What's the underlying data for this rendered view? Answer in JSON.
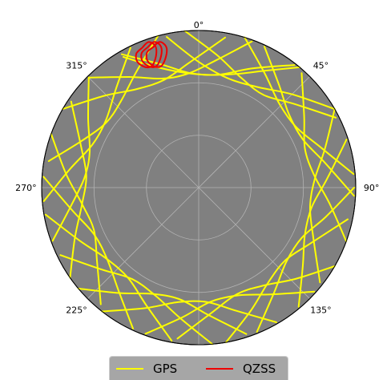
{
  "chart_data": {
    "type": "polar-skyplot",
    "title": "",
    "angular_ticks": [
      {
        "deg": 0,
        "label": "0°"
      },
      {
        "deg": 45,
        "label": "45°"
      },
      {
        "deg": 90,
        "label": "90°"
      },
      {
        "deg": 135,
        "label": "135°"
      },
      {
        "deg": 225,
        "label": "225°"
      },
      {
        "deg": 270,
        "label": "270°"
      },
      {
        "deg": 315,
        "label": "315°"
      }
    ],
    "angular_direction": "clockwise",
    "zero_location": "top",
    "radial_grid_fraction": [
      0.333,
      0.667
    ],
    "background_color": "#808080",
    "grid_color": "#b3b3b3",
    "legend_placement": "bottom-center",
    "series": [
      {
        "name": "GPS",
        "color": "#ffff00",
        "tracks": [
          {
            "az": [
              40,
              30,
              18,
              5,
              -8,
              -20,
              -30
            ],
            "r": [
              1.0,
              0.86,
              0.76,
              0.72,
              0.74,
              0.82,
              0.96
            ]
          },
          {
            "az": [
              60,
              45,
              30,
              15,
              0,
              -12
            ],
            "r": [
              1.0,
              0.84,
              0.74,
              0.72,
              0.8,
              0.98
            ]
          },
          {
            "az": [
              20,
              8,
              -5,
              -18,
              -32,
              -45
            ],
            "r": [
              0.99,
              0.82,
              0.73,
              0.73,
              0.83,
              0.99
            ]
          },
          {
            "az": [
              -15,
              -28,
              -42,
              -55,
              -68,
              -80
            ],
            "r": [
              1.0,
              0.84,
              0.74,
              0.72,
              0.8,
              0.97
            ]
          },
          {
            "az": [
              -45,
              -58,
              -72,
              -85,
              -98,
              -110
            ],
            "r": [
              0.99,
              0.83,
              0.73,
              0.73,
              0.82,
              0.99
            ]
          },
          {
            "az": [
              -70,
              -84,
              -98,
              -112,
              -126,
              -140
            ],
            "r": [
              1.0,
              0.85,
              0.75,
              0.72,
              0.8,
              0.97
            ]
          },
          {
            "az": [
              -100,
              -114,
              -128,
              -142,
              -156,
              -170
            ],
            "r": [
              0.99,
              0.83,
              0.74,
              0.73,
              0.82,
              0.99
            ]
          },
          {
            "az": [
              -130,
              -143,
              -156,
              -170,
              -184,
              -198
            ],
            "r": [
              1.0,
              0.84,
              0.74,
              0.72,
              0.81,
              0.98
            ]
          },
          {
            "az": [
              -160,
              -173,
              -186,
              -200,
              -214,
              -228
            ],
            "r": [
              0.99,
              0.83,
              0.73,
              0.73,
              0.82,
              0.99
            ]
          },
          {
            "az": [
              170,
              157,
              144,
              130,
              116,
              102
            ],
            "r": [
              1.0,
              0.85,
              0.75,
              0.72,
              0.8,
              0.97
            ]
          },
          {
            "az": [
              140,
              127,
              114,
              100,
              86,
              72
            ],
            "r": [
              0.99,
              0.83,
              0.74,
              0.73,
              0.82,
              0.99
            ]
          },
          {
            "az": [
              110,
              97,
              84,
              70,
              56,
              42
            ],
            "r": [
              1.0,
              0.84,
              0.74,
              0.72,
              0.81,
              0.98
            ]
          },
          {
            "az": [
              85,
              72,
              58,
              44,
              30,
              17
            ],
            "r": [
              0.99,
              0.82,
              0.73,
              0.74,
              0.84,
              1.0
            ]
          },
          {
            "az": [
              -30,
              -17,
              -4,
              10,
              24,
              38
            ],
            "r": [
              0.98,
              0.82,
              0.73,
              0.73,
              0.83,
              0.99
            ]
          },
          {
            "az": [
              -60,
              -46,
              -32,
              -18,
              -4,
              10
            ],
            "r": [
              1.0,
              0.84,
              0.74,
              0.72,
              0.8,
              0.97
            ]
          },
          {
            "az": [
              -95,
              -82,
              -68,
              -54,
              -40,
              -26
            ],
            "r": [
              0.99,
              0.83,
              0.73,
              0.73,
              0.82,
              0.99
            ]
          },
          {
            "az": [
              -125,
              -112,
              -98,
              -84,
              -70,
              -56
            ],
            "r": [
              1.0,
              0.85,
              0.75,
              0.72,
              0.8,
              0.98
            ]
          },
          {
            "az": [
              -155,
              -142,
              -128,
              -114,
              -100,
              -86
            ],
            "r": [
              0.99,
              0.83,
              0.74,
              0.73,
              0.82,
              0.99
            ]
          },
          {
            "az": [
              175,
              188,
              202,
              216,
              230,
              244
            ],
            "r": [
              1.0,
              0.84,
              0.74,
              0.72,
              0.81,
              0.98
            ]
          },
          {
            "az": [
              150,
              163,
              176,
              190,
              204,
              218
            ],
            "r": [
              0.99,
              0.82,
              0.73,
              0.74,
              0.84,
              1.0
            ]
          },
          {
            "az": [
              120,
              133,
              146,
              160,
              174,
              188
            ],
            "r": [
              1.0,
              0.85,
              0.75,
              0.72,
              0.8,
              0.97
            ]
          },
          {
            "az": [
              90,
              103,
              116,
              130,
              144,
              158
            ],
            "r": [
              0.99,
              0.83,
              0.73,
              0.73,
              0.82,
              0.99
            ]
          },
          {
            "az": [
              60,
              73,
              86,
              100,
              114,
              128
            ],
            "r": [
              1.0,
              0.84,
              0.74,
              0.72,
              0.8,
              0.98
            ]
          },
          {
            "az": [
              25,
              38,
              51,
              65,
              79,
              93
            ],
            "r": [
              0.99,
              0.83,
              0.74,
              0.73,
              0.82,
              0.99
            ]
          },
          {
            "az": [
              -5,
              8,
              21,
              35,
              49,
              63
            ],
            "r": [
              1.0,
              0.85,
              0.75,
              0.72,
              0.81,
              0.98
            ]
          }
        ]
      },
      {
        "name": "QZSS",
        "color": "#ee0000",
        "tracks": [
          {
            "az": [
              -20,
              -17,
              -15,
              -16,
              -19,
              -22,
              -24,
              -23,
              -20
            ],
            "r": [
              0.95,
              0.97,
              0.93,
              0.87,
              0.82,
              0.83,
              0.88,
              0.93,
              0.95
            ]
          },
          {
            "az": [
              -18,
              -15,
              -13,
              -14,
              -17,
              -20,
              -22,
              -21,
              -18
            ],
            "r": [
              0.94,
              0.96,
              0.92,
              0.86,
              0.81,
              0.82,
              0.87,
              0.92,
              0.94
            ]
          },
          {
            "az": [
              -22,
              -19,
              -17,
              -18,
              -21,
              -24,
              -26,
              -25,
              -22
            ],
            "r": [
              0.96,
              0.98,
              0.94,
              0.88,
              0.83,
              0.84,
              0.89,
              0.94,
              0.96
            ]
          }
        ]
      }
    ]
  }
}
